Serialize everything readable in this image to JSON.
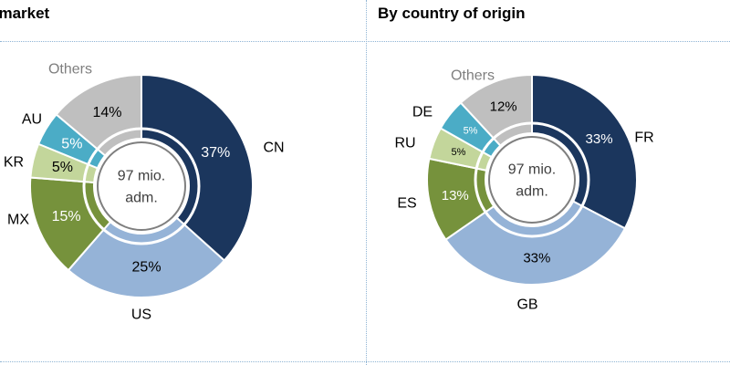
{
  "chart_data": [
    {
      "type": "pie",
      "title": "By market",
      "center_label": [
        "97 mio.",
        "adm."
      ],
      "categories": [
        "CN",
        "US",
        "MX",
        "KR",
        "AU",
        "Others"
      ],
      "values": [
        37,
        25,
        15,
        5,
        5,
        14
      ],
      "value_labels": [
        "37%",
        "25%",
        "15%",
        "5%",
        "5%",
        "14%"
      ],
      "colors": [
        "#1b365d",
        "#95b3d7",
        "#76923c",
        "#c3d69b",
        "#4bacc6",
        "#bfbfbf"
      ],
      "label_colors": [
        "#ffffff",
        "#000000",
        "#ffffff",
        "#000000",
        "#ffffff",
        "#000000"
      ],
      "unit": "%"
    },
    {
      "type": "pie",
      "title": "By country of origin",
      "center_label": [
        "97 mio.",
        "adm."
      ],
      "categories": [
        "FR",
        "GB",
        "ES",
        "RU",
        "DE",
        "Others"
      ],
      "values": [
        33,
        33,
        13,
        5,
        5,
        12
      ],
      "value_labels": [
        "33%",
        "33%",
        "13%",
        "5%",
        "5%",
        "12%"
      ],
      "colors": [
        "#1b365d",
        "#95b3d7",
        "#76923c",
        "#c3d69b",
        "#4bacc6",
        "#bfbfbf"
      ],
      "label_colors": [
        "#ffffff",
        "#000000",
        "#ffffff",
        "#000000",
        "#ffffff",
        "#000000"
      ],
      "unit": "%"
    }
  ]
}
